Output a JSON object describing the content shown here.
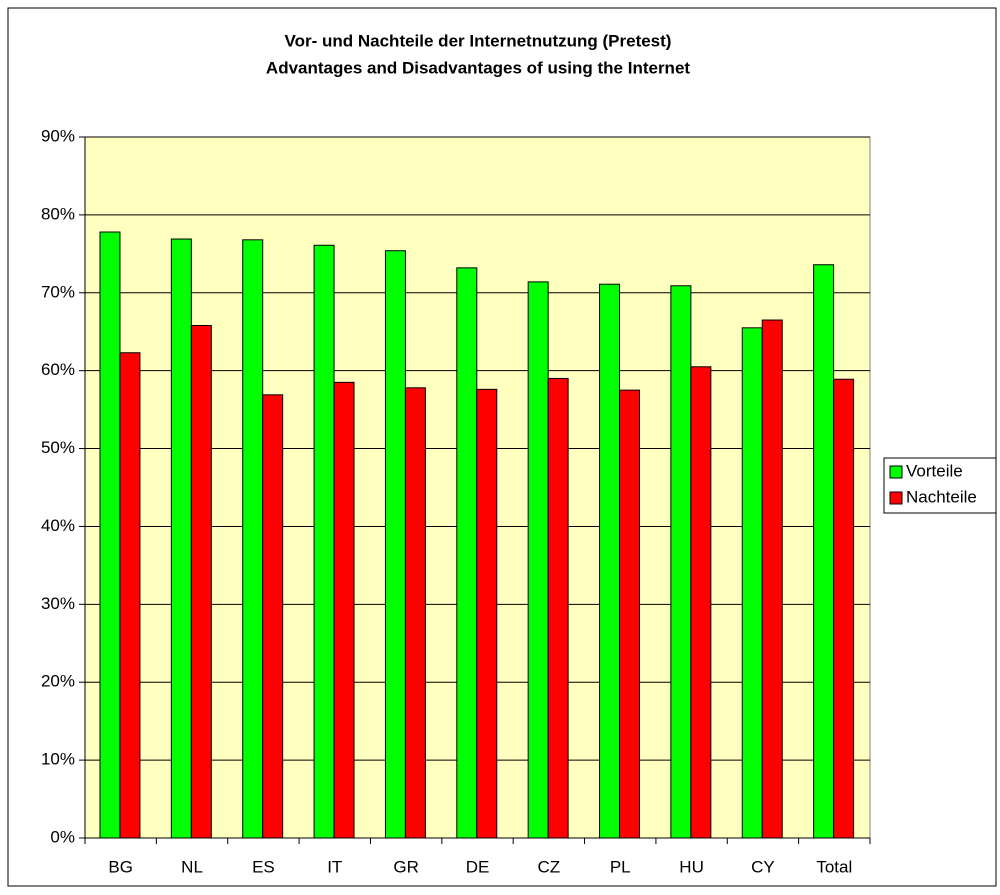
{
  "chart_data": {
    "type": "bar",
    "title": "Vor- und Nachteile der Internetnutzung (Pretest)",
    "subtitle": "Advantages and Disadvantages of using the Internet",
    "categories": [
      "BG",
      "NL",
      "ES",
      "IT",
      "GR",
      "DE",
      "CZ",
      "PL",
      "HU",
      "CY",
      "Total"
    ],
    "series": [
      {
        "name": "Vorteile",
        "color": "#00ff00",
        "values": [
          77.8,
          76.9,
          76.8,
          76.1,
          75.4,
          73.2,
          71.4,
          71.1,
          70.9,
          65.5,
          73.6
        ]
      },
      {
        "name": "Nachteile",
        "color": "#ff0000",
        "values": [
          62.3,
          65.8,
          56.9,
          58.5,
          57.8,
          57.6,
          59.0,
          57.5,
          60.5,
          66.5,
          58.9
        ]
      }
    ],
    "ylim": [
      0,
      90
    ],
    "yticks": [
      {
        "value": 0,
        "label": "0%"
      },
      {
        "value": 10,
        "label": "10%"
      },
      {
        "value": 20,
        "label": "20%"
      },
      {
        "value": 30,
        "label": "30%"
      },
      {
        "value": 40,
        "label": "40%"
      },
      {
        "value": 50,
        "label": "50%"
      },
      {
        "value": 60,
        "label": "60%"
      },
      {
        "value": 70,
        "label": "70%"
      },
      {
        "value": 80,
        "label": "80%"
      },
      {
        "value": 90,
        "label": "90%"
      }
    ],
    "grid": true,
    "legend": "right"
  }
}
